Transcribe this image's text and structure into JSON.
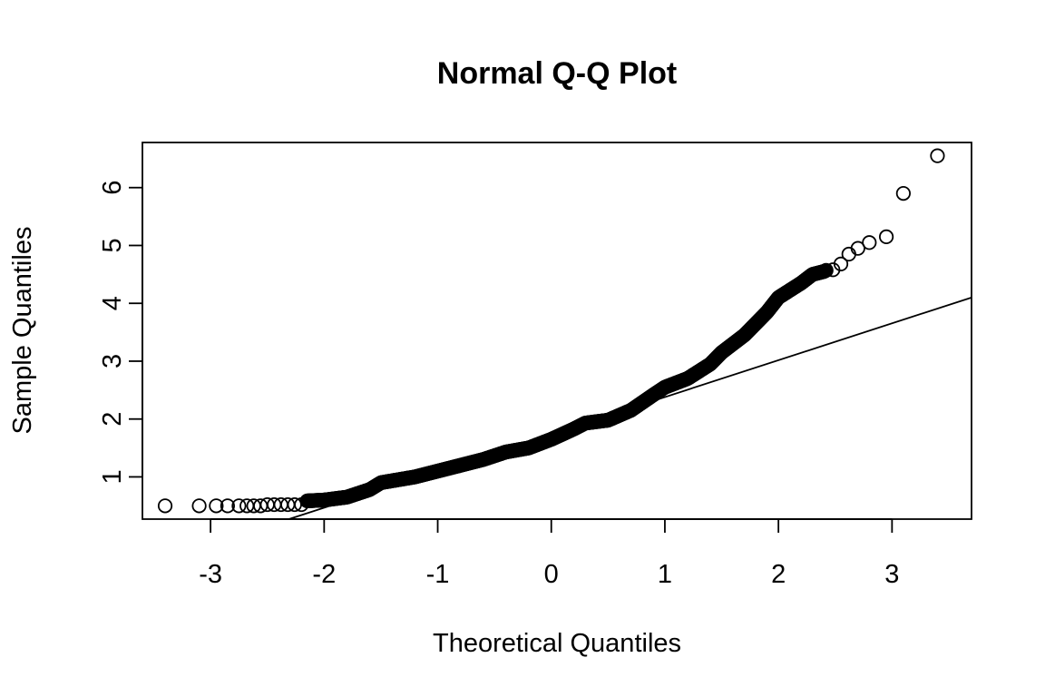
{
  "chart_data": {
    "type": "scatter",
    "title": "Normal Q-Q Plot",
    "xlabel": "Theoretical Quantiles",
    "ylabel": "Sample Quantiles",
    "xlim": [
      -3.6,
      3.7
    ],
    "ylim": [
      0.27,
      6.78
    ],
    "grid": false,
    "legend": "none",
    "x_ticks": [
      {
        "value": -3,
        "label": "-3"
      },
      {
        "value": -2,
        "label": "-2"
      },
      {
        "value": -1,
        "label": "-1"
      },
      {
        "value": 0,
        "label": "0"
      },
      {
        "value": 1,
        "label": "1"
      },
      {
        "value": 2,
        "label": "2"
      },
      {
        "value": 3,
        "label": "3"
      }
    ],
    "y_ticks": [
      {
        "value": 1,
        "label": "1"
      },
      {
        "value": 2,
        "label": "2"
      },
      {
        "value": 3,
        "label": "3"
      },
      {
        "value": 4,
        "label": "4"
      },
      {
        "value": 5,
        "label": "5"
      },
      {
        "value": 6,
        "label": "6"
      }
    ],
    "reference_line": {
      "x": [
        -2.31,
        3.7
      ],
      "y": [
        0.27,
        4.1
      ]
    },
    "qq_curve": [
      [
        -3.4,
        0.5
      ],
      [
        -2.2,
        0.58
      ],
      [
        -2.0,
        0.6
      ],
      [
        -1.8,
        0.65
      ],
      [
        -1.6,
        0.78
      ],
      [
        -1.5,
        0.9
      ],
      [
        -1.2,
        1.0
      ],
      [
        -1.0,
        1.1
      ],
      [
        -0.6,
        1.3
      ],
      [
        -0.4,
        1.43
      ],
      [
        -0.2,
        1.5
      ],
      [
        0.0,
        1.65
      ],
      [
        0.2,
        1.83
      ],
      [
        0.3,
        1.93
      ],
      [
        0.5,
        1.98
      ],
      [
        0.7,
        2.15
      ],
      [
        0.9,
        2.42
      ],
      [
        1.0,
        2.55
      ],
      [
        1.2,
        2.7
      ],
      [
        1.4,
        2.95
      ],
      [
        1.5,
        3.15
      ],
      [
        1.6,
        3.3
      ],
      [
        1.7,
        3.45
      ],
      [
        1.8,
        3.65
      ],
      [
        1.9,
        3.85
      ],
      [
        2.0,
        4.1
      ],
      [
        2.2,
        4.35
      ],
      [
        2.3,
        4.5
      ],
      [
        2.4,
        4.55
      ],
      [
        2.5,
        4.65
      ],
      [
        2.6,
        4.85
      ],
      [
        2.7,
        4.95
      ],
      [
        2.8,
        5.05
      ],
      [
        2.95,
        5.15
      ],
      [
        3.1,
        5.9
      ],
      [
        3.4,
        6.55
      ]
    ],
    "tail_points": [
      {
        "x": -3.4,
        "y": 0.5
      },
      {
        "x": -3.1,
        "y": 0.5
      },
      {
        "x": -2.95,
        "y": 0.5
      },
      {
        "x": -2.85,
        "y": 0.5
      },
      {
        "x": -2.75,
        "y": 0.5
      },
      {
        "x": -2.68,
        "y": 0.5
      },
      {
        "x": -2.62,
        "y": 0.5
      },
      {
        "x": -2.56,
        "y": 0.5
      },
      {
        "x": -2.5,
        "y": 0.52
      },
      {
        "x": -2.44,
        "y": 0.52
      },
      {
        "x": -2.38,
        "y": 0.52
      },
      {
        "x": -2.32,
        "y": 0.52
      },
      {
        "x": -2.26,
        "y": 0.52
      },
      {
        "x": -2.2,
        "y": 0.52
      },
      {
        "x": 2.48,
        "y": 4.58
      },
      {
        "x": 2.55,
        "y": 4.68
      },
      {
        "x": 2.62,
        "y": 4.85
      },
      {
        "x": 2.7,
        "y": 4.95
      },
      {
        "x": 2.8,
        "y": 5.05
      },
      {
        "x": 2.95,
        "y": 5.15
      },
      {
        "x": 3.1,
        "y": 5.9
      },
      {
        "x": 3.4,
        "y": 6.55
      }
    ],
    "dense_n": 700
  }
}
